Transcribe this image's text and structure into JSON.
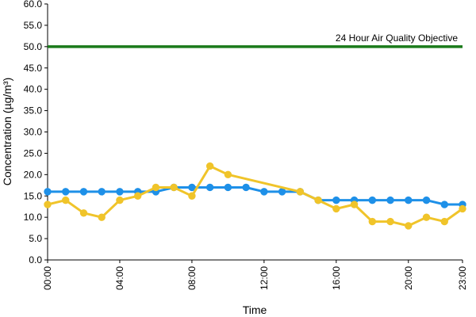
{
  "chart_data": {
    "type": "line",
    "title": "",
    "xlabel": "Time",
    "ylabel": "Concentration (µg/m³)",
    "ylim": [
      0,
      60
    ],
    "xlim": [
      0,
      23
    ],
    "y_ticks": [
      "0.0",
      "5.0",
      "10.0",
      "15.0",
      "20.0",
      "25.0",
      "30.0",
      "35.0",
      "40.0",
      "45.0",
      "50.0",
      "55.0",
      "60.0"
    ],
    "x_ticks": [
      "00:00",
      "04:00",
      "08:00",
      "12:00",
      "16:00",
      "20:00",
      "23:00"
    ],
    "x_tick_hours": [
      0,
      4,
      8,
      12,
      16,
      20,
      23
    ],
    "grid": false,
    "legend": "none",
    "reference_line": {
      "label": "24 Hour Air Quality Objective",
      "value": 50,
      "color": "#1a7a1a"
    },
    "series": [
      {
        "color": "#1e90e8",
        "x": [
          0,
          1,
          2,
          3,
          4,
          5,
          6,
          7,
          8,
          9,
          10,
          11,
          12,
          13,
          14,
          15,
          16,
          17,
          18,
          19,
          20,
          21,
          22,
          23
        ],
        "values": [
          16,
          16,
          16,
          16,
          16,
          16,
          16,
          17,
          17,
          17,
          17,
          17,
          16,
          16,
          16,
          14,
          14,
          14,
          14,
          14,
          14,
          14,
          13,
          13
        ]
      },
      {
        "color": "#f0c42a",
        "x": [
          0,
          1,
          2,
          3,
          4,
          5,
          6,
          7,
          8,
          9,
          10,
          14,
          15,
          16,
          17,
          18,
          19,
          20,
          21,
          22,
          23
        ],
        "values": [
          13,
          14,
          11,
          10,
          14,
          15,
          17,
          17,
          15,
          22,
          20,
          16,
          14,
          12,
          13,
          9,
          9,
          8,
          10,
          9,
          12
        ]
      }
    ]
  }
}
